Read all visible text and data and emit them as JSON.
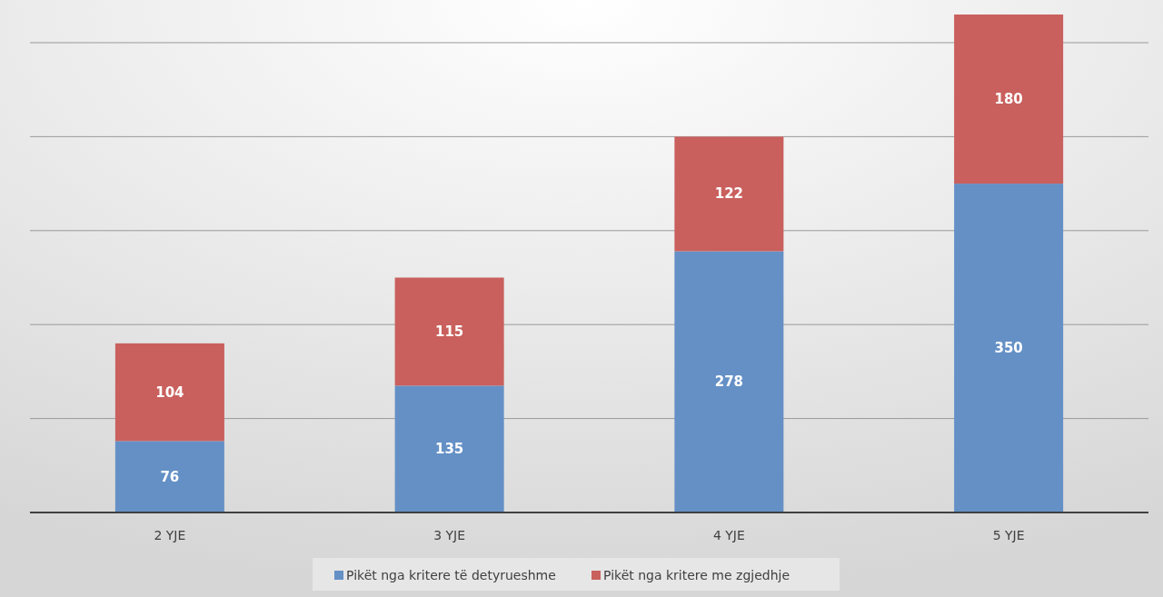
{
  "chart_data": {
    "type": "bar",
    "stacked": true,
    "categories": [
      "2 YJE",
      "3 YJE",
      "4 YJE",
      "5 YJE"
    ],
    "series": [
      {
        "name": "Pikët nga kritere të detyrueshme",
        "color": "#6490c6",
        "values": [
          76,
          135,
          278,
          350
        ]
      },
      {
        "name": "Pikët nga kritere me zgjedhje",
        "color": "#c9605d",
        "values": [
          104,
          115,
          122,
          180
        ]
      }
    ],
    "yticks": [
      {
        "value": 0,
        "label": null
      },
      {
        "value": 100,
        "label": null
      },
      {
        "value": 200,
        "label": null
      },
      {
        "value": 300,
        "label": null
      },
      {
        "value": 400,
        "label": null
      },
      {
        "value": 500,
        "label": null
      }
    ],
    "grid": "y",
    "data_labels": true,
    "legend": "bottom",
    "tick_labels": "x"
  }
}
